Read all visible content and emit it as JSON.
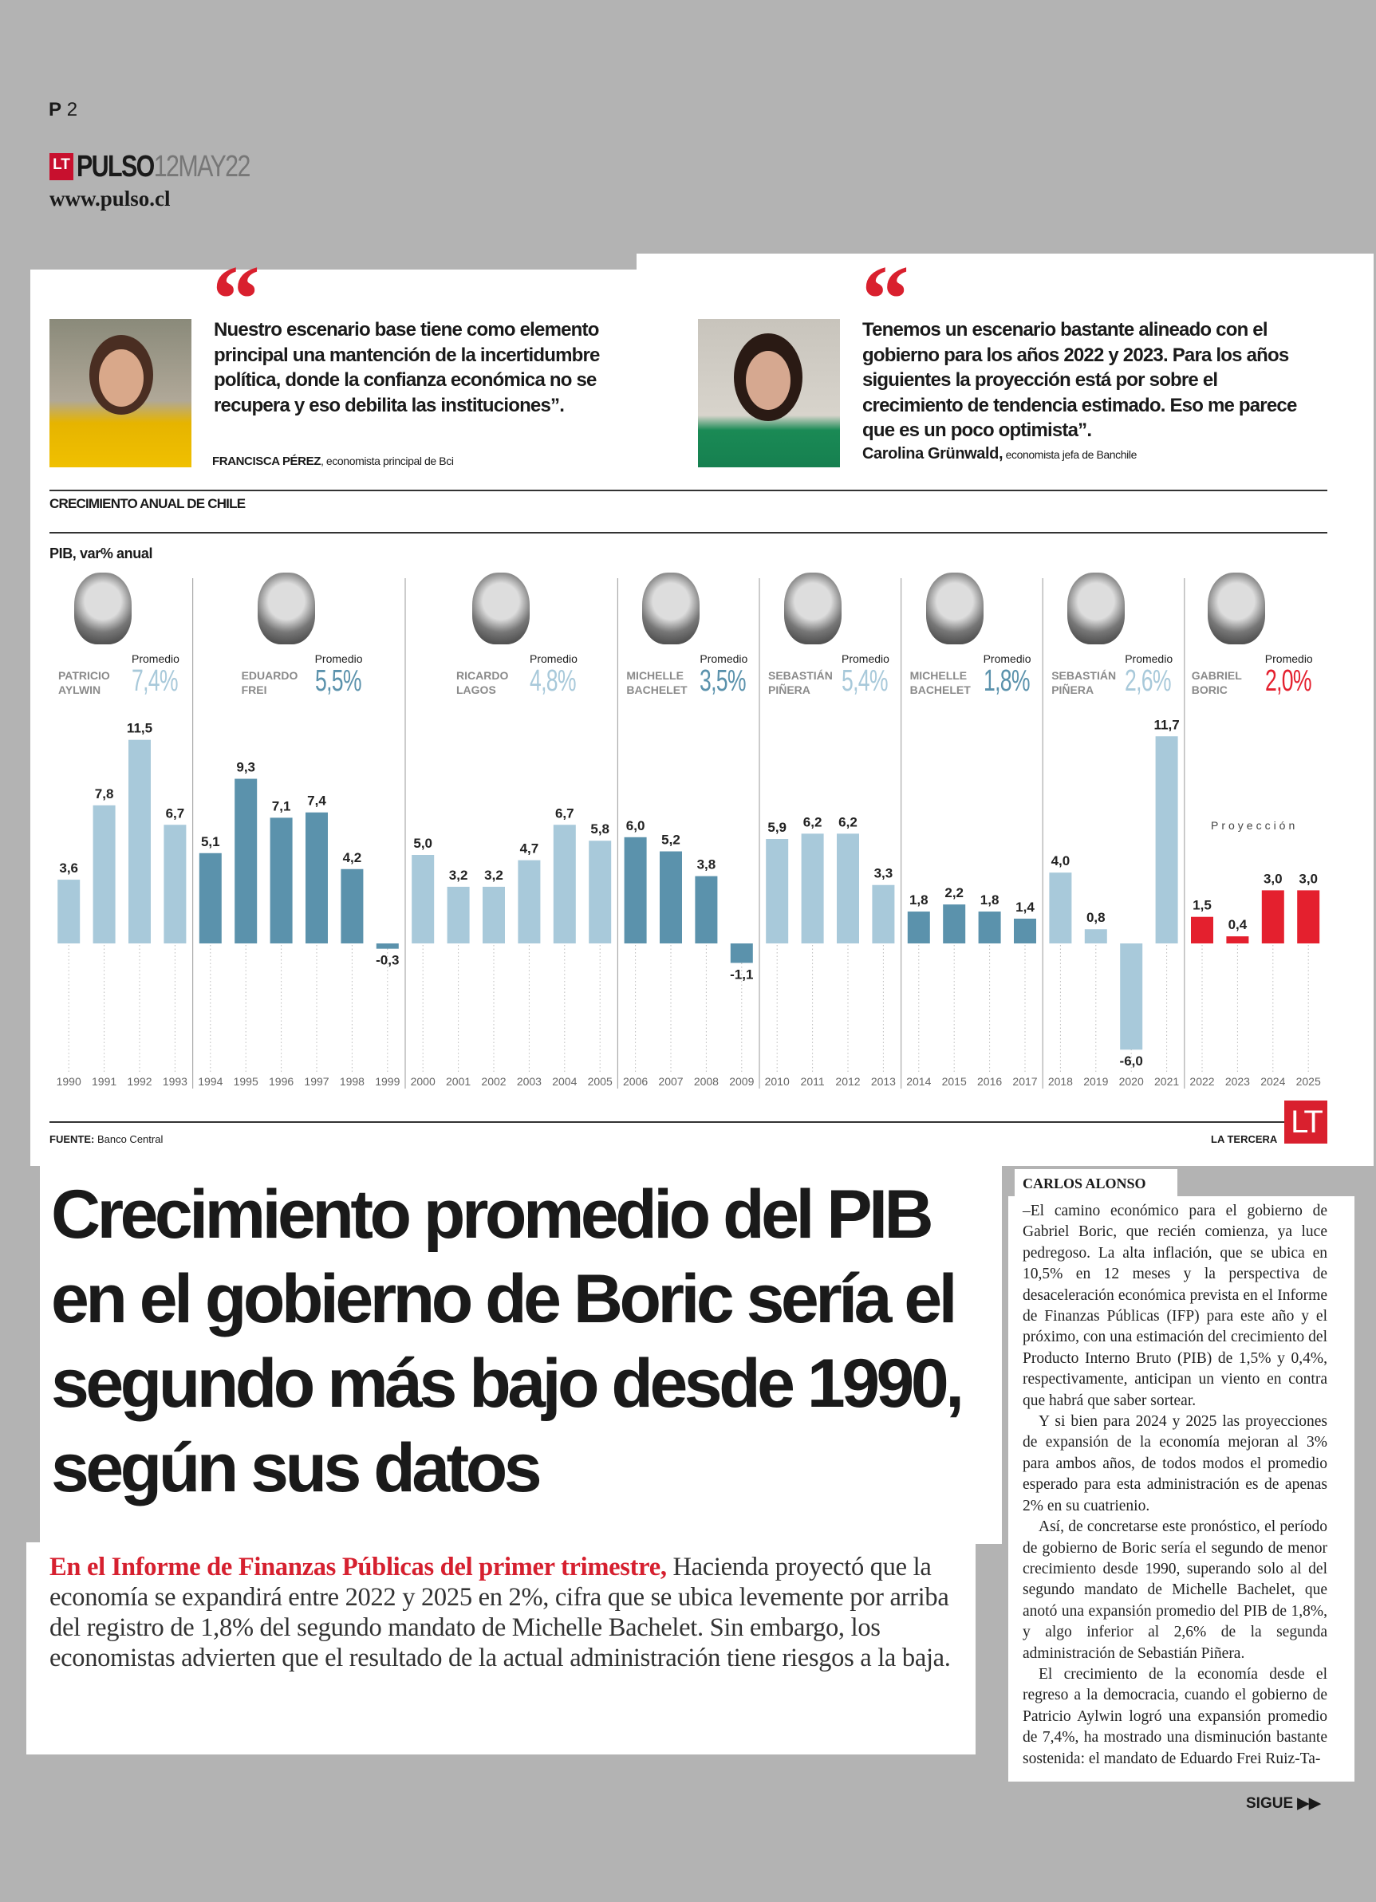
{
  "header": {
    "page_prefix": "P",
    "page_number": "2",
    "logo_lt": "LT",
    "logo_brand": "PULSO",
    "date": "12MAY22",
    "website": "www.pulso.cl"
  },
  "quotes": [
    {
      "text": "Nuestro escenario base tiene como elemento principal una mantención de la incertidumbre política, donde la confianza económica no se recupera y eso debilita las instituciones”.",
      "name": "FRANCISCA PÉREZ",
      "role": ", economista principal de Bci"
    },
    {
      "text": "Tenemos un escenario bastante alineado con el gobierno para los años 2022 y 2023. Para los años siguientes la proyección está por sobre el crecimiento de tendencia estimado. Eso me parece que es un poco optimista”.",
      "name": "Carolina Grünwald,",
      "role": " economista jefa de Banchile"
    }
  ],
  "chart_data": {
    "type": "bar",
    "title": "CRECIMIENTO ANUAL DE CHILE",
    "subtitle": "PIB, var% anual",
    "categories": [
      "1990",
      "1991",
      "1992",
      "1993",
      "1994",
      "1995",
      "1996",
      "1997",
      "1998",
      "1999",
      "2000",
      "2001",
      "2002",
      "2003",
      "2004",
      "2005",
      "2006",
      "2007",
      "2008",
      "2009",
      "2010",
      "2011",
      "2012",
      "2013",
      "2014",
      "2015",
      "2016",
      "2017",
      "2018",
      "2019",
      "2020",
      "2021",
      "2022",
      "2023",
      "2024",
      "2025"
    ],
    "values": [
      3.6,
      7.8,
      11.5,
      6.7,
      5.1,
      9.3,
      7.1,
      7.4,
      4.2,
      -0.3,
      5.0,
      3.2,
      3.2,
      4.7,
      6.7,
      5.8,
      6.0,
      5.2,
      3.8,
      -1.1,
      5.9,
      6.2,
      6.2,
      3.3,
      1.8,
      2.2,
      1.8,
      1.4,
      4.0,
      0.8,
      -6.0,
      11.7,
      1.5,
      0.4,
      3.0,
      3.0
    ],
    "value_labels": [
      "3,6",
      "7,8",
      "11,5",
      "6,7",
      "5,1",
      "9,3",
      "7,1",
      "7,4",
      "4,2",
      "-0,3",
      "5,0",
      "3,2",
      "3,2",
      "4,7",
      "6,7",
      "5,8",
      "6,0",
      "5,2",
      "3,8",
      "-1,1",
      "5,9",
      "6,2",
      "6,2",
      "3,3",
      "1,8",
      "2,2",
      "1,8",
      "1,4",
      "4,0",
      "0,8",
      "-6,0",
      "11,7",
      "1,5",
      "0,4",
      "3,0",
      "3,0"
    ],
    "ylim": [
      -6.5,
      12.5
    ],
    "grid": false,
    "governments": [
      {
        "first": "PATRICIO",
        "last": "AYLWIN",
        "start": 1990,
        "end": 1993,
        "avg_label": "Promedio",
        "avg": "7,4%",
        "color": "#a8c9da"
      },
      {
        "first": "EDUARDO",
        "last": "FREI",
        "start": 1994,
        "end": 1999,
        "avg_label": "Promedio",
        "avg": "5,5%",
        "color": "#5b92ac"
      },
      {
        "first": "RICARDO",
        "last": "LAGOS",
        "start": 2000,
        "end": 2005,
        "avg_label": "Promedio",
        "avg": "4,8%",
        "color": "#a8c9da"
      },
      {
        "first": "MICHELLE",
        "last": "BACHELET",
        "start": 2006,
        "end": 2009,
        "avg_label": "Promedio",
        "avg": "3,5%",
        "color": "#5b92ac"
      },
      {
        "first": "SEBASTIÁN",
        "last": "PIÑERA",
        "start": 2010,
        "end": 2013,
        "avg_label": "Promedio",
        "avg": "5,4%",
        "color": "#a8c9da"
      },
      {
        "first": "MICHELLE",
        "last": "BACHELET",
        "start": 2014,
        "end": 2017,
        "avg_label": "Promedio",
        "avg": "1,8%",
        "color": "#5b92ac"
      },
      {
        "first": "SEBASTIÁN",
        "last": "PIÑERA",
        "start": 2018,
        "end": 2021,
        "avg_label": "Promedio",
        "avg": "2,6%",
        "color": "#a8c9da"
      },
      {
        "first": "GABRIEL",
        "last": "BORIC",
        "start": 2022,
        "end": 2025,
        "avg_label": "Promedio",
        "avg": "2,0%",
        "color": "#e4202e"
      }
    ],
    "annotation": "Proyección",
    "source_label": "FUENTE:",
    "source": " Banco Central",
    "credit": "LA TERCERA",
    "credit_logo": "LT"
  },
  "article": {
    "headline": "Crecimiento promedio del PIB en el gobierno de Boric sería el segundo más bajo desde 1990, según sus datos",
    "deck_lead": "En el Informe de Finanzas Públicas del primer trimestre,",
    "deck_rest": " Hacienda proyectó que la economía se expandirá entre 2022 y 2025 en 2%, cifra que se ubica levemente por arriba del registro de 1,8% del segundo mandato de Michelle Bachelet. Sin embargo, los economistas advierten que el resultado de la actual administración tiene riesgos a la baja.",
    "byline": "CARLOS ALONSO",
    "paragraphs": [
      "–El camino económico para el gobierno de Gabriel Boric, que recién comienza, ya luce pedregoso. La alta inflación, que se ubica en 10,5% en 12 meses y la perspectiva de desaceleración económica prevista en el Informe de Finanzas Públicas (IFP) para este año y el próximo, con una estimación del crecimiento del Producto Interno Bruto (PIB) de 1,5% y 0,4%, respectivamente, anticipan un viento en contra que habrá que saber sortear.",
      "Y si bien para 2024 y 2025 las proyecciones de expansión de la economía mejoran al 3% para ambos años, de todos modos el promedio esperado para esta administración es de apenas 2% en su cuatrienio.",
      "Así, de concretarse este pronóstico, el período de gobierno de Boric sería el segundo de menor crecimiento desde 1990, superando solo al del segundo mandato de Michelle Bachelet, que anotó una expansión promedio del PIB de 1,8%, y algo inferior al 2,6% de la segunda administración de Sebastián Piñera.",
      "El crecimiento de la economía desde el regreso a la democracia, cuando el gobierno de Patricio Aylwin logró una expansión promedio de 7,4%, ha mostrado una disminución bastante sostenida: el mandato de Eduardo Frei Ruiz-Ta-"
    ],
    "continue_label": "SIGUE ▶▶"
  }
}
